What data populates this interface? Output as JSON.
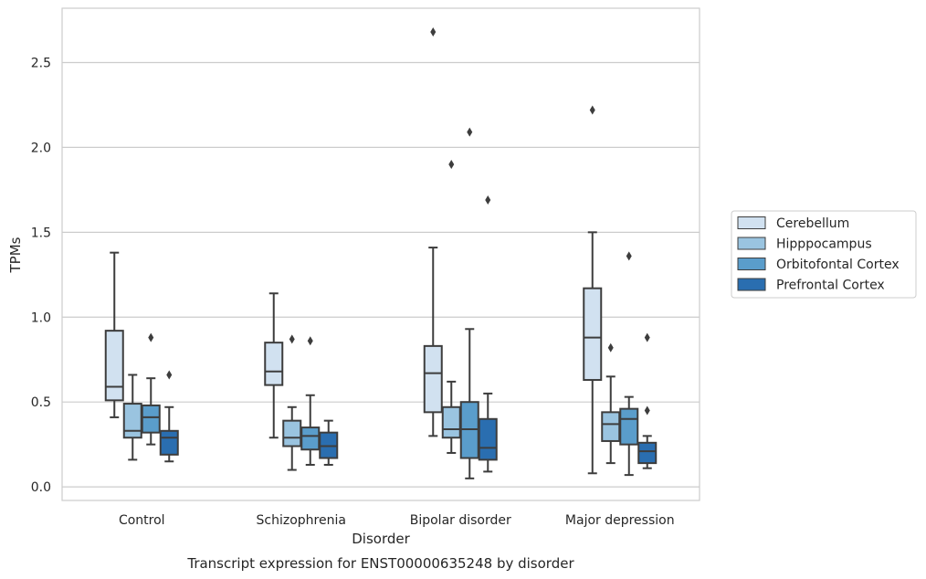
{
  "chart_data": {
    "type": "box",
    "title": "Transcript expression for ENST00000635248 by disorder",
    "xlabel": "Disorder",
    "ylabel": "TPMs",
    "ylim": [
      -0.08,
      2.82
    ],
    "yticks": [
      "0.0",
      "0.5",
      "1.0",
      "1.5",
      "2.0",
      "2.5"
    ],
    "grid": true,
    "legend_position": "right",
    "categories": [
      "Control",
      "Schizophrenia",
      "Bipolar disorder",
      "Major depression"
    ],
    "series": [
      {
        "name": "Cerebellum",
        "color": "#d1e1f0",
        "boxes": [
          {
            "whislo": 0.41,
            "q1": 0.51,
            "med": 0.59,
            "q3": 0.92,
            "whishi": 1.38,
            "fliers": []
          },
          {
            "whislo": 0.29,
            "q1": 0.6,
            "med": 0.68,
            "q3": 0.85,
            "whishi": 1.14,
            "fliers": []
          },
          {
            "whislo": 0.3,
            "q1": 0.44,
            "med": 0.67,
            "q3": 0.83,
            "whishi": 1.41,
            "fliers": [
              2.68
            ]
          },
          {
            "whislo": 0.08,
            "q1": 0.63,
            "med": 0.88,
            "q3": 1.17,
            "whishi": 1.5,
            "fliers": [
              2.22
            ]
          }
        ]
      },
      {
        "name": "Hipppocampus",
        "color": "#9ac4e0",
        "boxes": [
          {
            "whislo": 0.16,
            "q1": 0.29,
            "med": 0.33,
            "q3": 0.49,
            "whishi": 0.66,
            "fliers": []
          },
          {
            "whislo": 0.1,
            "q1": 0.24,
            "med": 0.29,
            "q3": 0.39,
            "whishi": 0.47,
            "fliers": [
              0.87
            ]
          },
          {
            "whislo": 0.2,
            "q1": 0.29,
            "med": 0.34,
            "q3": 0.47,
            "whishi": 0.62,
            "fliers": [
              1.9
            ]
          },
          {
            "whislo": 0.14,
            "q1": 0.27,
            "med": 0.37,
            "q3": 0.44,
            "whishi": 0.65,
            "fliers": [
              0.82
            ]
          }
        ]
      },
      {
        "name": "Orbitofontal Cortex",
        "color": "#5a9dcb",
        "boxes": [
          {
            "whislo": 0.25,
            "q1": 0.32,
            "med": 0.41,
            "q3": 0.48,
            "whishi": 0.64,
            "fliers": [
              0.88
            ]
          },
          {
            "whislo": 0.13,
            "q1": 0.22,
            "med": 0.3,
            "q3": 0.35,
            "whishi": 0.54,
            "fliers": [
              0.86
            ]
          },
          {
            "whislo": 0.05,
            "q1": 0.17,
            "med": 0.34,
            "q3": 0.5,
            "whishi": 0.93,
            "fliers": [
              2.09
            ]
          },
          {
            "whislo": 0.07,
            "q1": 0.25,
            "med": 0.4,
            "q3": 0.46,
            "whishi": 0.53,
            "fliers": [
              1.36
            ]
          }
        ]
      },
      {
        "name": "Prefrontal Cortex",
        "color": "#2a6eb0",
        "boxes": [
          {
            "whislo": 0.15,
            "q1": 0.19,
            "med": 0.29,
            "q3": 0.33,
            "whishi": 0.47,
            "fliers": [
              0.66
            ]
          },
          {
            "whislo": 0.13,
            "q1": 0.17,
            "med": 0.24,
            "q3": 0.32,
            "whishi": 0.39,
            "fliers": []
          },
          {
            "whislo": 0.09,
            "q1": 0.16,
            "med": 0.23,
            "q3": 0.4,
            "whishi": 0.55,
            "fliers": [
              1.69
            ]
          },
          {
            "whislo": 0.11,
            "q1": 0.14,
            "med": 0.21,
            "q3": 0.26,
            "whishi": 0.3,
            "fliers": [
              0.88,
              0.45
            ]
          }
        ]
      }
    ]
  }
}
